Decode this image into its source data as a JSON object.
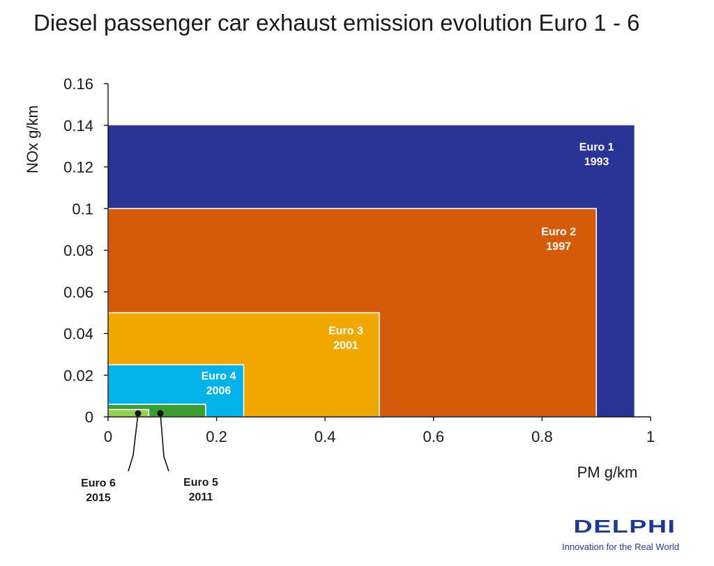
{
  "page": {
    "title": "Diesel passenger car exhaust emission evolution Euro 1 - 6"
  },
  "chart_data": {
    "type": "area",
    "title": "Diesel passenger car exhaust emission evolution Euro 1 - 6",
    "xlabel": "PM  g/km",
    "ylabel": "NOx  g/km",
    "xlim": [
      0,
      1
    ],
    "ylim": [
      0,
      0.16
    ],
    "x_ticks": [
      "0",
      "0.2",
      "0.4",
      "0.6",
      "0.8",
      "1"
    ],
    "x_tick_values": [
      0,
      0.2,
      0.4,
      0.6,
      0.8,
      1
    ],
    "y_ticks": [
      "0",
      "0.02",
      "0.04",
      "0.06",
      "0.08",
      "0.1",
      "0.12",
      "0.14",
      "0.16"
    ],
    "y_tick_values": [
      0,
      0.02,
      0.04,
      0.06,
      0.08,
      0.1,
      0.12,
      0.14,
      0.16
    ],
    "grid": false,
    "series": [
      {
        "name": "Euro 1",
        "year": "1993",
        "pm": 0.97,
        "nox": 0.14,
        "color": "#2b3494"
      },
      {
        "name": "Euro 2",
        "year": "1997",
        "pm": 0.9,
        "nox": 0.1,
        "color": "#d35b09"
      },
      {
        "name": "Euro 3",
        "year": "2001",
        "pm": 0.5,
        "nox": 0.05,
        "color": "#f0a800"
      },
      {
        "name": "Euro 4",
        "year": "2006",
        "pm": 0.25,
        "nox": 0.025,
        "color": "#00b1ea"
      },
      {
        "name": "Euro 5",
        "year": "2011",
        "pm": 0.18,
        "nox": 0.006,
        "color": "#3a9e35"
      },
      {
        "name": "Euro 6",
        "year": "2015",
        "pm": 0.075,
        "nox": 0.0035,
        "color": "#92d050"
      }
    ]
  },
  "logo": {
    "word": "DELPHI",
    "tagline": "Innovation for the Real World"
  }
}
